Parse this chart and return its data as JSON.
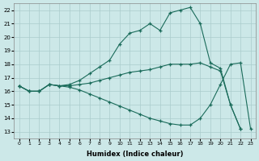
{
  "bg_color": "#cce8e8",
  "grid_color": "#aacccc",
  "line_color": "#1a6b5a",
  "xlabel": "Humidex (Indice chaleur)",
  "xlim": [
    -0.5,
    23.5
  ],
  "ylim": [
    12.5,
    22.5
  ],
  "xticks": [
    0,
    1,
    2,
    3,
    4,
    5,
    6,
    7,
    8,
    9,
    10,
    11,
    12,
    13,
    14,
    15,
    16,
    17,
    18,
    19,
    20,
    21,
    22,
    23
  ],
  "yticks": [
    13,
    14,
    15,
    16,
    17,
    18,
    19,
    20,
    21,
    22
  ],
  "series": [
    {
      "x": [
        0,
        1,
        2,
        3,
        4,
        5,
        6,
        7,
        8,
        9,
        10,
        11,
        12,
        13,
        14,
        15,
        16,
        17,
        18,
        19,
        20,
        21,
        22
      ],
      "y": [
        16.4,
        16.0,
        16.0,
        16.5,
        16.4,
        16.5,
        16.8,
        17.3,
        17.8,
        18.3,
        19.5,
        20.3,
        20.5,
        21.0,
        20.5,
        21.8,
        22.0,
        22.2,
        21.0,
        18.1,
        17.7,
        15.0,
        13.2
      ]
    },
    {
      "x": [
        0,
        1,
        2,
        3,
        4,
        5,
        6,
        7,
        8,
        9,
        10,
        11,
        12,
        13,
        14,
        15,
        16,
        17,
        18,
        19,
        20,
        21,
        22
      ],
      "y": [
        16.4,
        16.0,
        16.0,
        16.5,
        16.4,
        16.4,
        16.5,
        16.6,
        16.8,
        17.0,
        17.2,
        17.4,
        17.5,
        17.6,
        17.8,
        18.0,
        18.0,
        18.0,
        18.1,
        17.8,
        17.5,
        15.0,
        13.2
      ]
    },
    {
      "x": [
        0,
        1,
        2,
        3,
        4,
        5,
        6,
        7,
        8,
        9,
        10,
        11,
        12,
        13,
        14,
        15,
        16,
        17,
        18,
        19,
        20,
        21,
        22,
        23
      ],
      "y": [
        16.4,
        16.0,
        16.0,
        16.5,
        16.4,
        16.3,
        16.1,
        15.8,
        15.5,
        15.2,
        14.9,
        14.6,
        14.3,
        14.0,
        13.8,
        13.6,
        13.5,
        13.5,
        14.0,
        15.0,
        16.5,
        18.0,
        18.1,
        13.2
      ]
    }
  ]
}
